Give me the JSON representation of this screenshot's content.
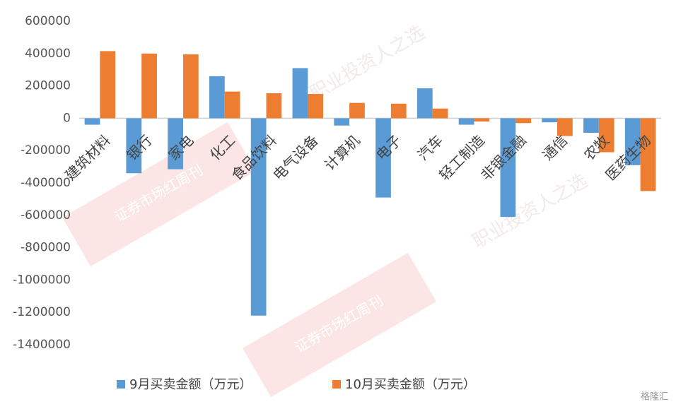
{
  "chart_data": {
    "type": "bar",
    "categories": [
      "建筑材料",
      "银行",
      "家电",
      "化工",
      "食品饮料",
      "电气设备",
      "计算机",
      "电子",
      "汽车",
      "轻工制造",
      "非银金融",
      "通信",
      "农牧",
      "医药生物"
    ],
    "series": [
      {
        "name": "9月买卖金额（万元）",
        "color": "#5b9bd5",
        "values": [
          -40000,
          -340000,
          -315000,
          260000,
          -1220000,
          310000,
          -45000,
          -490000,
          185000,
          -40000,
          -610000,
          -25000,
          -90000,
          -290000
        ]
      },
      {
        "name": "10月买卖金额（万元）",
        "color": "#ed7d31",
        "values": [
          415000,
          400000,
          395000,
          165000,
          155000,
          150000,
          95000,
          90000,
          60000,
          -20000,
          -30000,
          -110000,
          -210000,
          -450000
        ]
      }
    ],
    "ylim": [
      -1400000,
      600000
    ],
    "yticks": [
      600000,
      400000,
      200000,
      0,
      -200000,
      -400000,
      -600000,
      -800000,
      -1000000,
      -1200000,
      -1400000
    ],
    "legend": "bottom",
    "watermarks": [
      "职业投资人之选",
      "证券市场红周刊",
      "格隆汇"
    ]
  }
}
